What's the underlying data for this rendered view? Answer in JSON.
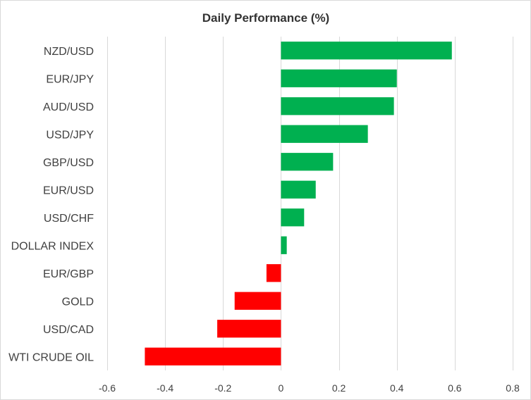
{
  "chart_data": {
    "type": "bar",
    "orientation": "horizontal",
    "title": "Daily Performance  (%)",
    "categories": [
      "NZD/USD",
      "EUR/JPY",
      "AUD/USD",
      "USD/JPY",
      "GBP/USD",
      "EUR/USD",
      "USD/CHF",
      "DOLLAR INDEX",
      "EUR/GBP",
      "GOLD",
      "USD/CAD",
      "WTI CRUDE OIL"
    ],
    "values": [
      0.59,
      0.4,
      0.39,
      0.3,
      0.18,
      0.12,
      0.08,
      0.02,
      -0.05,
      -0.16,
      -0.22,
      -0.47
    ],
    "xlim": [
      -0.6,
      0.8
    ],
    "xticks": [
      -0.6,
      -0.4,
      -0.2,
      0,
      0.2,
      0.4,
      0.6,
      0.8
    ],
    "xtick_labels": [
      "-0.6",
      "-0.4",
      "-0.2",
      "0",
      "0.2",
      "0.4",
      "0.6",
      "0.8"
    ],
    "grid": true,
    "legend": "none",
    "colors": {
      "positive": "#00b050",
      "negative": "#ff0000",
      "grid": "#d9d9d9",
      "text": "#404040"
    }
  }
}
